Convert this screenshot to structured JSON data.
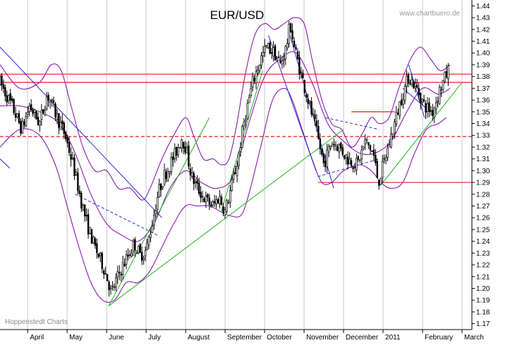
{
  "title": "EUR/USD",
  "source": "www.chartbuero.de",
  "credit": "Hoppenstedt Charts",
  "chart_data": {
    "type": "candlestick",
    "title": "EUR/USD",
    "ylim": [
      1.165,
      1.445
    ],
    "y_ticks": [
      1.17,
      1.18,
      1.19,
      1.2,
      1.21,
      1.22,
      1.23,
      1.24,
      1.25,
      1.26,
      1.27,
      1.28,
      1.29,
      1.3,
      1.31,
      1.32,
      1.33,
      1.34,
      1.35,
      1.36,
      1.37,
      1.38,
      1.39,
      1.4,
      1.41,
      1.42,
      1.43,
      1.44
    ],
    "x_labels": [
      "April",
      "May",
      "June",
      "July",
      "August",
      "September",
      "October",
      "November",
      "December",
      "2011",
      "February",
      "March"
    ],
    "x_label_months": [
      1,
      2,
      3,
      4,
      5,
      6,
      7,
      8,
      9,
      10,
      11,
      12
    ],
    "x_range_months": [
      0.3,
      12.25
    ],
    "grid": "vertical",
    "price_path": [
      [
        0.3,
        1.375
      ],
      [
        0.6,
        1.355
      ],
      [
        0.85,
        1.335
      ],
      [
        1.05,
        1.355
      ],
      [
        1.3,
        1.34
      ],
      [
        1.5,
        1.365
      ],
      [
        1.75,
        1.345
      ],
      [
        1.95,
        1.33
      ],
      [
        2.15,
        1.305
      ],
      [
        2.35,
        1.275
      ],
      [
        2.5,
        1.255
      ],
      [
        2.7,
        1.235
      ],
      [
        2.9,
        1.22
      ],
      [
        3.05,
        1.205
      ],
      [
        3.12,
        1.195
      ],
      [
        3.22,
        1.205
      ],
      [
        3.35,
        1.215
      ],
      [
        3.5,
        1.225
      ],
      [
        3.7,
        1.238
      ],
      [
        3.85,
        1.228
      ],
      [
        4.0,
        1.232
      ],
      [
        4.15,
        1.255
      ],
      [
        4.3,
        1.28
      ],
      [
        4.45,
        1.295
      ],
      [
        4.6,
        1.305
      ],
      [
        4.75,
        1.315
      ],
      [
        4.9,
        1.328
      ],
      [
        5.0,
        1.32
      ],
      [
        5.15,
        1.295
      ],
      [
        5.3,
        1.285
      ],
      [
        5.5,
        1.275
      ],
      [
        5.7,
        1.27
      ],
      [
        5.85,
        1.278
      ],
      [
        6.0,
        1.265
      ],
      [
        6.15,
        1.285
      ],
      [
        6.3,
        1.305
      ],
      [
        6.5,
        1.345
      ],
      [
        6.7,
        1.375
      ],
      [
        6.9,
        1.395
      ],
      [
        7.05,
        1.405
      ],
      [
        7.25,
        1.4
      ],
      [
        7.4,
        1.39
      ],
      [
        7.55,
        1.405
      ],
      [
        7.65,
        1.425
      ],
      [
        7.75,
        1.405
      ],
      [
        7.9,
        1.385
      ],
      [
        8.1,
        1.36
      ],
      [
        8.3,
        1.335
      ],
      [
        8.5,
        1.305
      ],
      [
        8.7,
        1.325
      ],
      [
        8.9,
        1.32
      ],
      [
        9.1,
        1.31
      ],
      [
        9.35,
        1.305
      ],
      [
        9.55,
        1.325
      ],
      [
        9.75,
        1.315
      ],
      [
        9.88,
        1.29
      ],
      [
        10.05,
        1.31
      ],
      [
        10.25,
        1.335
      ],
      [
        10.45,
        1.36
      ],
      [
        10.65,
        1.38
      ],
      [
        10.85,
        1.37
      ],
      [
        11.05,
        1.355
      ],
      [
        11.25,
        1.35
      ],
      [
        11.45,
        1.37
      ],
      [
        11.65,
        1.385
      ]
    ],
    "bollinger": {
      "upper": [
        [
          0.3,
          1.39
        ],
        [
          0.8,
          1.37
        ],
        [
          1.3,
          1.375
        ],
        [
          1.6,
          1.39
        ],
        [
          1.85,
          1.385
        ],
        [
          2.1,
          1.355
        ],
        [
          2.4,
          1.32
        ],
        [
          2.7,
          1.3
        ],
        [
          3.0,
          1.3
        ],
        [
          3.3,
          1.285
        ],
        [
          3.6,
          1.285
        ],
        [
          3.9,
          1.275
        ],
        [
          4.1,
          1.285
        ],
        [
          4.4,
          1.31
        ],
        [
          4.7,
          1.33
        ],
        [
          5.0,
          1.345
        ],
        [
          5.2,
          1.33
        ],
        [
          5.45,
          1.31
        ],
        [
          5.7,
          1.31
        ],
        [
          5.9,
          1.305
        ],
        [
          6.1,
          1.31
        ],
        [
          6.3,
          1.34
        ],
        [
          6.5,
          1.38
        ],
        [
          6.75,
          1.415
        ],
        [
          7.0,
          1.425
        ],
        [
          7.25,
          1.42
        ],
        [
          7.5,
          1.425
        ],
        [
          7.75,
          1.43
        ],
        [
          8.0,
          1.425
        ],
        [
          8.2,
          1.395
        ],
        [
          8.45,
          1.36
        ],
        [
          8.7,
          1.34
        ],
        [
          8.95,
          1.335
        ],
        [
          9.2,
          1.32
        ],
        [
          9.45,
          1.33
        ],
        [
          9.7,
          1.345
        ],
        [
          9.9,
          1.34
        ],
        [
          10.15,
          1.345
        ],
        [
          10.4,
          1.37
        ],
        [
          10.7,
          1.395
        ],
        [
          10.95,
          1.405
        ],
        [
          11.2,
          1.395
        ],
        [
          11.45,
          1.385
        ],
        [
          11.7,
          1.39
        ]
      ],
      "middle": [
        [
          0.3,
          1.355
        ],
        [
          0.8,
          1.355
        ],
        [
          1.3,
          1.35
        ],
        [
          1.8,
          1.34
        ],
        [
          2.2,
          1.315
        ],
        [
          2.6,
          1.28
        ],
        [
          3.0,
          1.255
        ],
        [
          3.4,
          1.245
        ],
        [
          3.8,
          1.24
        ],
        [
          4.2,
          1.255
        ],
        [
          4.6,
          1.285
        ],
        [
          5.0,
          1.3
        ],
        [
          5.4,
          1.29
        ],
        [
          5.8,
          1.285
        ],
        [
          6.2,
          1.295
        ],
        [
          6.6,
          1.34
        ],
        [
          7.0,
          1.38
        ],
        [
          7.4,
          1.395
        ],
        [
          7.8,
          1.4
        ],
        [
          8.2,
          1.375
        ],
        [
          8.6,
          1.34
        ],
        [
          9.0,
          1.325
        ],
        [
          9.4,
          1.315
        ],
        [
          9.8,
          1.315
        ],
        [
          10.2,
          1.325
        ],
        [
          10.6,
          1.35
        ],
        [
          11.0,
          1.37
        ],
        [
          11.4,
          1.365
        ],
        [
          11.7,
          1.37
        ]
      ],
      "lower": [
        [
          0.3,
          1.32
        ],
        [
          0.8,
          1.335
        ],
        [
          1.3,
          1.33
        ],
        [
          1.7,
          1.305
        ],
        [
          2.0,
          1.27
        ],
        [
          2.3,
          1.235
        ],
        [
          2.6,
          1.205
        ],
        [
          2.9,
          1.19
        ],
        [
          3.2,
          1.19
        ],
        [
          3.5,
          1.205
        ],
        [
          3.8,
          1.205
        ],
        [
          4.1,
          1.215
        ],
        [
          4.4,
          1.235
        ],
        [
          4.7,
          1.255
        ],
        [
          5.0,
          1.27
        ],
        [
          5.3,
          1.27
        ],
        [
          5.6,
          1.27
        ],
        [
          5.9,
          1.265
        ],
        [
          6.1,
          1.262
        ],
        [
          6.4,
          1.262
        ],
        [
          6.6,
          1.28
        ],
        [
          6.9,
          1.32
        ],
        [
          7.2,
          1.36
        ],
        [
          7.5,
          1.37
        ],
        [
          7.7,
          1.36
        ],
        [
          7.95,
          1.335
        ],
        [
          8.2,
          1.31
        ],
        [
          8.45,
          1.29
        ],
        [
          8.7,
          1.29
        ],
        [
          9.0,
          1.3
        ],
        [
          9.4,
          1.305
        ],
        [
          9.7,
          1.3
        ],
        [
          9.95,
          1.29
        ],
        [
          10.2,
          1.285
        ],
        [
          10.5,
          1.29
        ],
        [
          10.8,
          1.315
        ],
        [
          11.1,
          1.335
        ],
        [
          11.4,
          1.34
        ],
        [
          11.6,
          1.345
        ]
      ]
    },
    "horizontal_lines": [
      {
        "y": 1.382,
        "x": [
          0.3,
          12.25
        ],
        "color": "#e02020",
        "style": "solid"
      },
      {
        "y": 1.375,
        "x": [
          0.3,
          12.25
        ],
        "color": "#e02020",
        "style": "solid"
      },
      {
        "y": 1.329,
        "x": [
          0.3,
          12.25
        ],
        "color": "#e02020",
        "style": "dashed"
      },
      {
        "y": 1.29,
        "x": [
          8.35,
          12.25
        ],
        "color": "#e02020",
        "style": "solid"
      },
      {
        "y": 1.35,
        "x": [
          9.2,
          10.3
        ],
        "color": "#e02020",
        "style": "solid"
      }
    ],
    "trend_lines": [
      {
        "from": [
          0.3,
          1.405
        ],
        "to": [
          4.4,
          1.26
        ],
        "color": "#2a2ad0",
        "style": "solid"
      },
      {
        "from": [
          0.3,
          1.31
        ],
        "to": [
          0.55,
          1.302
        ],
        "color": "#2a2ad0",
        "style": "solid"
      },
      {
        "from": [
          2.2,
          1.28
        ],
        "to": [
          4.3,
          1.245
        ],
        "color": "#2a2ad0",
        "style": "dashed"
      },
      {
        "from": [
          3.05,
          1.185
        ],
        "to": [
          5.6,
          1.345
        ],
        "color": "#20b020",
        "style": "solid"
      },
      {
        "from": [
          3.05,
          1.185
        ],
        "to": [
          9.0,
          1.335
        ],
        "color": "#20b020",
        "style": "solid"
      },
      {
        "from": [
          5.9,
          1.265
        ],
        "to": [
          6.95,
          1.385
        ],
        "color": "#20b020",
        "style": "solid"
      },
      {
        "from": [
          7.1,
          1.415
        ],
        "to": [
          8.3,
          1.3
        ],
        "color": "#2a2ad0",
        "style": "solid"
      },
      {
        "from": [
          7.6,
          1.42
        ],
        "to": [
          8.75,
          1.285
        ],
        "color": "#2a2ad0",
        "style": "solid"
      },
      {
        "from": [
          8.55,
          1.345
        ],
        "to": [
          9.9,
          1.335
        ],
        "color": "#2a2ad0",
        "style": "dashed"
      },
      {
        "from": [
          8.35,
          1.295
        ],
        "to": [
          9.9,
          1.31
        ],
        "color": "#2a2ad0",
        "style": "dashed"
      },
      {
        "from": [
          9.95,
          1.288
        ],
        "to": [
          12.0,
          1.375
        ],
        "color": "#20b020",
        "style": "solid"
      },
      {
        "from": [
          10.65,
          1.39
        ],
        "to": [
          11.05,
          1.345
        ],
        "color": "#2a2ad0",
        "style": "solid"
      },
      {
        "from": [
          10.5,
          1.37
        ],
        "to": [
          11.2,
          1.35
        ],
        "color": "#2a2ad0",
        "style": "solid"
      }
    ],
    "colors": {
      "candles": "#000000",
      "bollinger": "#8a1cb0",
      "resistance": "#e02020",
      "uptrend": "#20b020",
      "downtrend": "#2a2ad0",
      "grid": "#c9c9c9"
    }
  }
}
